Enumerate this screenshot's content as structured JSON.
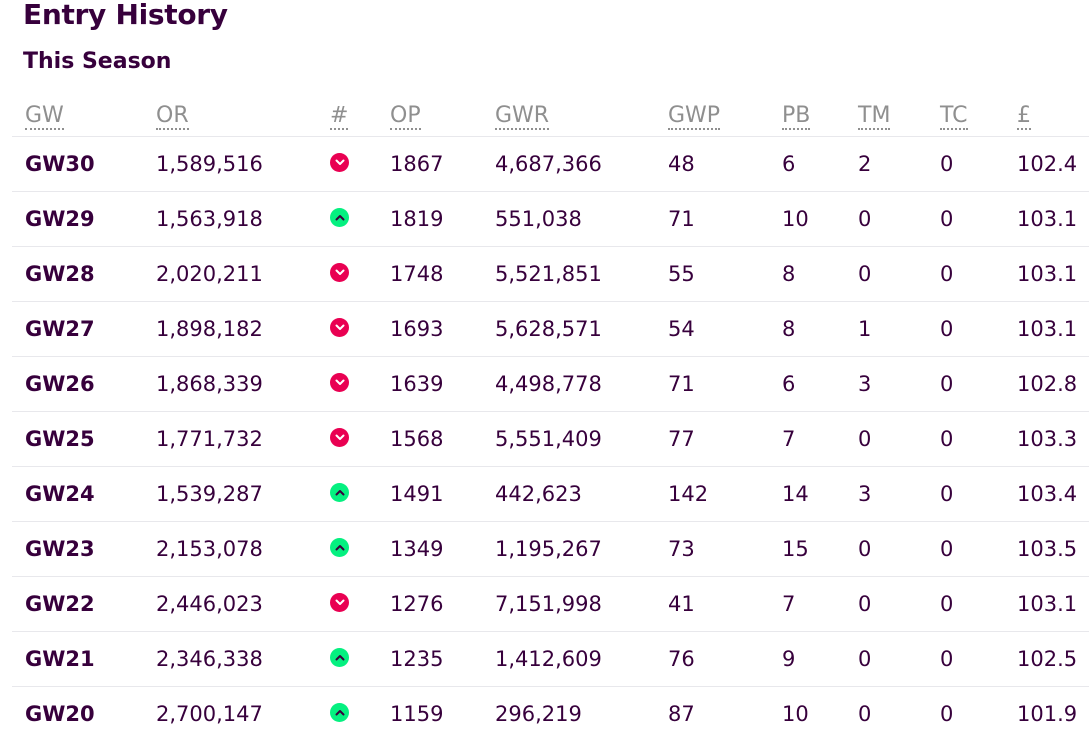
{
  "page": {
    "title": "Entry History",
    "section_title": "This Season"
  },
  "colors": {
    "text": "#37003c",
    "header_text": "#8f8f8f",
    "rank_down": "#e90052",
    "rank_up": "#05f080",
    "row_border": "#e8e8ec"
  },
  "table": {
    "headers": [
      "GW",
      "OR",
      "#",
      "OP",
      "GWR",
      "GWP",
      "PB",
      "TM",
      "TC",
      "£"
    ],
    "rows": [
      {
        "gw": "GW30",
        "or": "1,589,516",
        "movement": "down",
        "op": "1867",
        "gwr": "4,687,366",
        "gwp": "48",
        "pb": "6",
        "tm": "2",
        "tc": "0",
        "value": "102.4"
      },
      {
        "gw": "GW29",
        "or": "1,563,918",
        "movement": "up",
        "op": "1819",
        "gwr": "551,038",
        "gwp": "71",
        "pb": "10",
        "tm": "0",
        "tc": "0",
        "value": "103.1"
      },
      {
        "gw": "GW28",
        "or": "2,020,211",
        "movement": "down",
        "op": "1748",
        "gwr": "5,521,851",
        "gwp": "55",
        "pb": "8",
        "tm": "0",
        "tc": "0",
        "value": "103.1"
      },
      {
        "gw": "GW27",
        "or": "1,898,182",
        "movement": "down",
        "op": "1693",
        "gwr": "5,628,571",
        "gwp": "54",
        "pb": "8",
        "tm": "1",
        "tc": "0",
        "value": "103.1"
      },
      {
        "gw": "GW26",
        "or": "1,868,339",
        "movement": "down",
        "op": "1639",
        "gwr": "4,498,778",
        "gwp": "71",
        "pb": "6",
        "tm": "3",
        "tc": "0",
        "value": "102.8"
      },
      {
        "gw": "GW25",
        "or": "1,771,732",
        "movement": "down",
        "op": "1568",
        "gwr": "5,551,409",
        "gwp": "77",
        "pb": "7",
        "tm": "0",
        "tc": "0",
        "value": "103.3"
      },
      {
        "gw": "GW24",
        "or": "1,539,287",
        "movement": "up",
        "op": "1491",
        "gwr": "442,623",
        "gwp": "142",
        "pb": "14",
        "tm": "3",
        "tc": "0",
        "value": "103.4"
      },
      {
        "gw": "GW23",
        "or": "2,153,078",
        "movement": "up",
        "op": "1349",
        "gwr": "1,195,267",
        "gwp": "73",
        "pb": "15",
        "tm": "0",
        "tc": "0",
        "value": "103.5"
      },
      {
        "gw": "GW22",
        "or": "2,446,023",
        "movement": "down",
        "op": "1276",
        "gwr": "7,151,998",
        "gwp": "41",
        "pb": "7",
        "tm": "0",
        "tc": "0",
        "value": "103.1"
      },
      {
        "gw": "GW21",
        "or": "2,346,338",
        "movement": "up",
        "op": "1235",
        "gwr": "1,412,609",
        "gwp": "76",
        "pb": "9",
        "tm": "0",
        "tc": "0",
        "value": "102.5"
      },
      {
        "gw": "GW20",
        "or": "2,700,147",
        "movement": "up",
        "op": "1159",
        "gwr": "296,219",
        "gwp": "87",
        "pb": "10",
        "tm": "0",
        "tc": "0",
        "value": "101.9"
      }
    ]
  }
}
